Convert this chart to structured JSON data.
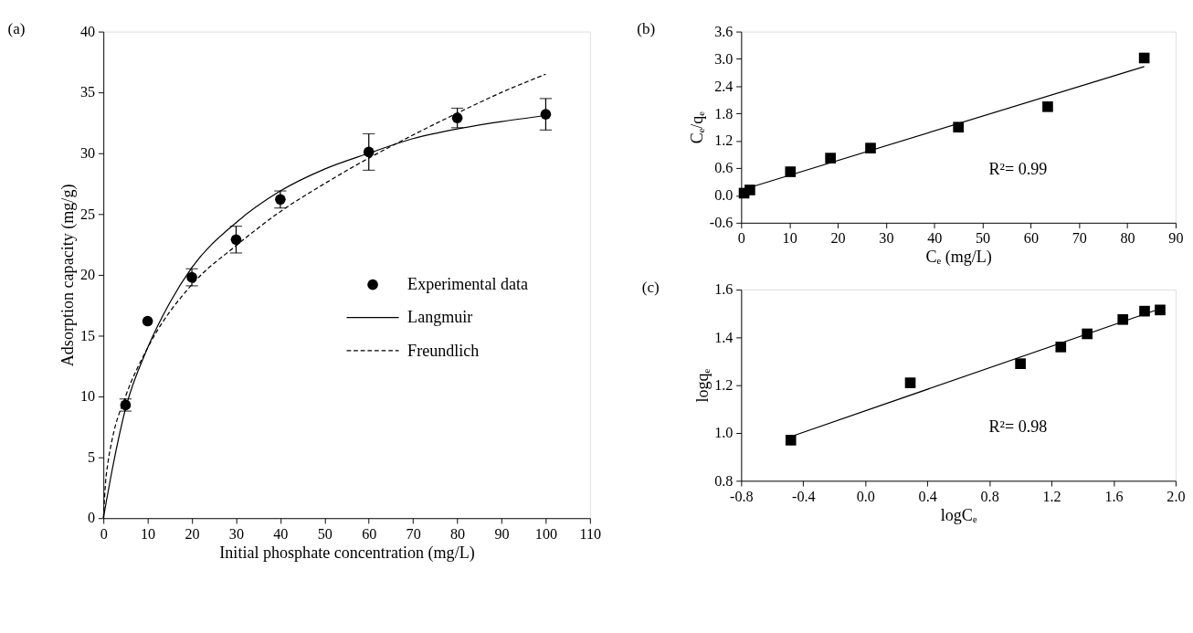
{
  "chart_data": [
    {
      "type": "scatter",
      "title": "(a)",
      "xlabel": "Initial phosphate concentration (mg/L)",
      "ylabel": "Adsorption capacity (mg/g)",
      "xlim": [
        0,
        110
      ],
      "xticks": [
        0,
        10,
        20,
        30,
        40,
        50,
        60,
        70,
        80,
        90,
        100,
        110
      ],
      "ylim": [
        0,
        40
      ],
      "yticks": [
        0,
        5,
        10,
        15,
        20,
        25,
        30,
        35,
        40
      ],
      "grid": false,
      "legend": "right",
      "series": [
        {
          "name": "Experimental data",
          "marker": "circle",
          "color": "#000000",
          "x": [
            5,
            10,
            20,
            30,
            40,
            60,
            80,
            100
          ],
          "values": [
            9.3,
            16.2,
            19.8,
            22.9,
            26.2,
            30.1,
            32.9,
            33.2
          ],
          "errors": [
            0.5,
            null,
            0.7,
            1.1,
            0.7,
            1.5,
            0.8,
            1.3
          ]
        },
        {
          "name": "Langmuir",
          "type": "line",
          "line_style": "solid",
          "color": "#000000",
          "x": [
            0,
            2,
            5,
            10,
            15,
            20,
            30,
            40,
            50,
            60,
            70,
            80,
            90,
            100
          ],
          "values": [
            0,
            4,
            9,
            14,
            17.7,
            20.6,
            24.3,
            26.9,
            28.7,
            30,
            31.2,
            32,
            32.6,
            33.1
          ]
        },
        {
          "name": "Freundlich",
          "type": "line",
          "line_style": "dashed",
          "color": "#000000",
          "x": [
            0,
            0.5,
            1,
            2,
            5,
            10,
            20,
            30,
            40,
            50,
            60,
            70,
            80,
            90,
            100
          ],
          "values": [
            0,
            3,
            4.5,
            6.5,
            10,
            14,
            19.2,
            22.4,
            25.2,
            27.5,
            29.6,
            31.5,
            33.3,
            35,
            36.5
          ]
        }
      ]
    },
    {
      "type": "scatter",
      "title": "(b)",
      "xlabel": "Cₑ (mg/L)",
      "ylabel": "Cₑ/qₑ",
      "xlim": [
        0,
        90
      ],
      "xticks": [
        0,
        10,
        20,
        30,
        40,
        50,
        60,
        70,
        80,
        90
      ],
      "ylim": [
        -0.6,
        3.6
      ],
      "yticks": [
        -0.6,
        {
          "value": 0,
          "label": "0.0"
        },
        0.6,
        1.2,
        1.8,
        2.4,
        {
          "value": 3,
          "label": "3.0"
        },
        3.6
      ],
      "grid": false,
      "annotations": [
        "R²= 0.99"
      ],
      "series": [
        {
          "marker": "square",
          "color": "#000000",
          "x": [
            0.6,
            1.8,
            10.2,
            18.5,
            26.8,
            45,
            63.5,
            83.5
          ],
          "values": [
            0.05,
            0.12,
            0.52,
            0.82,
            1.04,
            1.5,
            1.95,
            3.02
          ]
        },
        {
          "type": "line",
          "line_style": "solid",
          "color": "#000000",
          "x": [
            1,
            83.5
          ],
          "values": [
            0.15,
            2.83
          ]
        }
      ]
    },
    {
      "type": "scatter",
      "title": "(c)",
      "xlabel": "logCₑ",
      "ylabel": "logqₑ",
      "xlim": [
        -0.8,
        2.0
      ],
      "xticks": [
        -0.8,
        -0.4,
        {
          "value": 0,
          "label": "0.0"
        },
        0.4,
        0.8,
        1.2,
        1.6,
        {
          "value": 2,
          "label": "2.0"
        }
      ],
      "ylim": [
        0.8,
        1.6
      ],
      "yticks": [
        0.8,
        {
          "value": 1,
          "label": "1.0"
        },
        1.2,
        1.4,
        1.6
      ],
      "grid": false,
      "annotations": [
        "R²= 0.98"
      ],
      "series": [
        {
          "marker": "square",
          "color": "#000000",
          "x": [
            -0.48,
            0.29,
            1.0,
            1.26,
            1.43,
            1.66,
            1.8,
            1.9
          ],
          "values": [
            0.97,
            1.21,
            1.29,
            1.36,
            1.415,
            1.475,
            1.51,
            1.515
          ]
        },
        {
          "type": "line",
          "line_style": "solid",
          "color": "#000000",
          "x": [
            -0.48,
            1.9
          ],
          "values": [
            0.985,
            1.52
          ]
        }
      ]
    }
  ]
}
